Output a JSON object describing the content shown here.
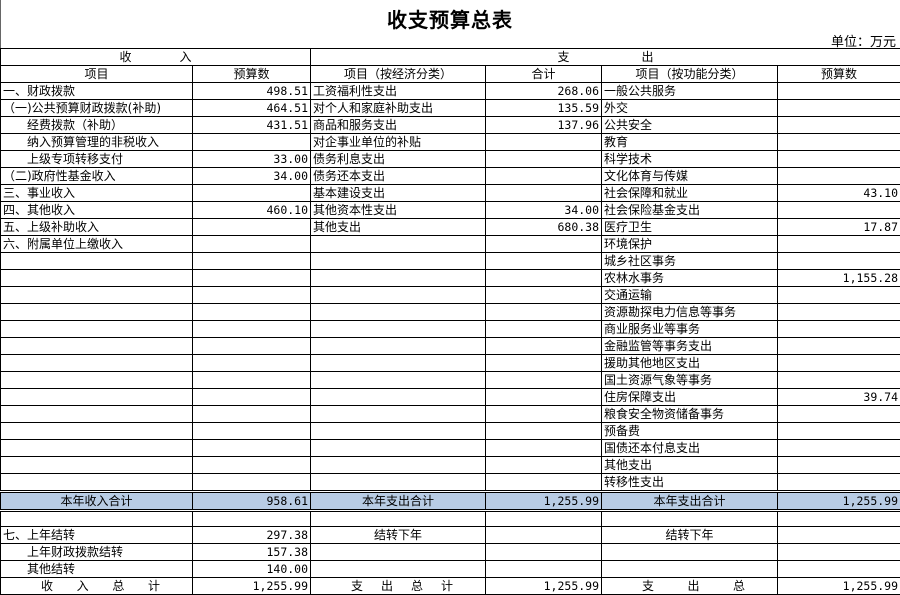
{
  "title": "收支预算总表",
  "unit": "单位：万元",
  "header": {
    "income": "收　　　　入",
    "expense": "支　　　　　　出",
    "col_item": "项目",
    "col_budget": "预算数",
    "col_econ": "项目（按经济分类）",
    "col_total": "合计",
    "col_func": "项目（按功能分类）",
    "col_budget2": "预算数"
  },
  "rows": [
    [
      "一、财政拨款",
      "498.51",
      "工资福利性支出",
      "268.06",
      "一般公共服务",
      ""
    ],
    [
      "（一)公共预算财政拨款(补助)",
      "464.51",
      "对个人和家庭补助支出",
      "135.59",
      "外交",
      ""
    ],
    [
      "　　经费拨款（补助）",
      "431.51",
      "商品和服务支出",
      "137.96",
      "公共安全",
      ""
    ],
    [
      "　　纳入预算管理的非税收入",
      "",
      "对企事业单位的补贴",
      "",
      "教育",
      ""
    ],
    [
      "　　上级专项转移支付",
      "33.00",
      "债务利息支出",
      "",
      "科学技术",
      ""
    ],
    [
      "（二)政府性基金收入",
      "34.00",
      "债务还本支出",
      "",
      "文化体育与传媒",
      ""
    ],
    [
      "三、事业收入",
      "",
      "基本建设支出",
      "",
      "社会保障和就业",
      "43.10"
    ],
    [
      "四、其他收入",
      "460.10",
      "其他资本性支出",
      "34.00",
      "社会保险基金支出",
      ""
    ],
    [
      "五、上级补助收入",
      "",
      "其他支出",
      "680.38",
      "医疗卫生",
      "17.87"
    ],
    [
      "六、附属单位上缴收入",
      "",
      "",
      "",
      "环境保护",
      ""
    ],
    [
      "",
      "",
      "",
      "",
      "城乡社区事务",
      ""
    ],
    [
      "",
      "",
      "",
      "",
      "农林水事务",
      "1,155.28"
    ],
    [
      "",
      "",
      "",
      "",
      "交通运输",
      ""
    ],
    [
      "",
      "",
      "",
      "",
      "资源勘探电力信息等事务",
      ""
    ],
    [
      "",
      "",
      "",
      "",
      "商业服务业等事务",
      ""
    ],
    [
      "",
      "",
      "",
      "",
      "金融监管等事务支出",
      ""
    ],
    [
      "",
      "",
      "",
      "",
      "援助其他地区支出",
      ""
    ],
    [
      "",
      "",
      "",
      "",
      "国土资源气象等事务",
      ""
    ],
    [
      "",
      "",
      "",
      "",
      "住房保障支出",
      "39.74"
    ],
    [
      "",
      "",
      "",
      "",
      "粮食安全物资储备事务",
      ""
    ],
    [
      "",
      "",
      "",
      "",
      "预备费",
      ""
    ],
    [
      "",
      "",
      "",
      "",
      "国债还本付息支出",
      ""
    ],
    [
      "",
      "",
      "",
      "",
      "其他支出",
      ""
    ],
    [
      "",
      "",
      "",
      "",
      "转移性支出",
      ""
    ]
  ],
  "totals": {
    "income_label": "本年收入合计",
    "income": "958.61",
    "expense_label": "本年支出合计",
    "expense": "1,255.99",
    "func_label": "本年支出合计",
    "func": "1,255.99"
  },
  "carry": [
    [
      "七、上年结转",
      "297.38",
      "结转下年",
      "",
      "结转下年",
      ""
    ],
    [
      "　　上年财政拨款结转",
      "157.38",
      "",
      "",
      "",
      ""
    ],
    [
      "　　其他结转",
      "140.00",
      "",
      "",
      "",
      ""
    ]
  ],
  "grand": {
    "income_label": [
      "收",
      "入",
      "总",
      "计"
    ],
    "income": "1,255.99",
    "expense_label": [
      "支",
      "出",
      "总",
      "计"
    ],
    "expense": "1,255.99",
    "func_label": [
      "支",
      "出",
      "总"
    ],
    "func": "1,255.99"
  },
  "colors": {
    "total_row": "#b8cce4"
  }
}
